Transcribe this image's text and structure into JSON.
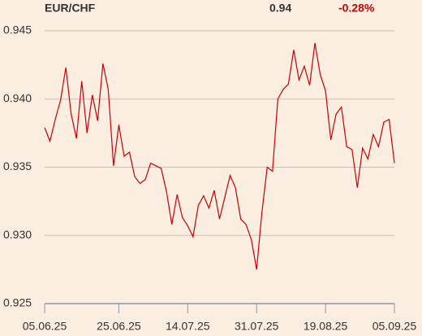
{
  "chart_data": {
    "type": "line",
    "title": "EUR/CHF",
    "price": 0.94,
    "change": {
      "value": -0.28,
      "label": "-0.28%"
    },
    "categories": [
      "05.06.25",
      null,
      null,
      null,
      null,
      null,
      null,
      null,
      null,
      null,
      null,
      null,
      null,
      null,
      "25.06.25",
      null,
      null,
      null,
      null,
      null,
      null,
      null,
      null,
      null,
      null,
      null,
      null,
      "14.07.25",
      null,
      null,
      null,
      null,
      null,
      null,
      null,
      null,
      null,
      null,
      null,
      null,
      "31.07.25",
      null,
      null,
      null,
      null,
      null,
      null,
      null,
      null,
      null,
      null,
      null,
      null,
      "19.08.25",
      null,
      null,
      null,
      null,
      null,
      null,
      null,
      null,
      null,
      null,
      null,
      null,
      "05.09.25"
    ],
    "values": [
      0.9379,
      0.9369,
      0.9385,
      0.9399,
      0.9423,
      0.9389,
      0.9371,
      0.9413,
      0.9375,
      0.9403,
      0.9384,
      0.9426,
      0.9407,
      0.9351,
      0.9381,
      0.9358,
      0.9361,
      0.9343,
      0.9338,
      0.9341,
      0.9353,
      0.9351,
      0.9349,
      0.9332,
      0.9308,
      0.933,
      0.9313,
      0.9307,
      0.9299,
      0.9322,
      0.9329,
      0.932,
      0.9333,
      0.9312,
      0.9328,
      0.9344,
      0.9335,
      0.9312,
      0.9308,
      0.9297,
      0.9275,
      0.9317,
      0.935,
      0.9347,
      0.94,
      0.9407,
      0.9411,
      0.9436,
      0.9414,
      0.9424,
      0.941,
      0.9441,
      0.9418,
      0.9406,
      0.937,
      0.9389,
      0.9394,
      0.9365,
      0.9363,
      0.9335,
      0.9364,
      0.9356,
      0.9374,
      0.9365,
      0.9383,
      0.9385,
      0.9353
    ],
    "color": "#cc0000",
    "ylim": [
      0.925,
      0.945
    ],
    "yticks": [
      0.945,
      {
        "value": 0.94,
        "label": "0.940"
      },
      0.935,
      {
        "value": 0.93,
        "label": "0.930"
      },
      0.925
    ],
    "grid": true
  }
}
